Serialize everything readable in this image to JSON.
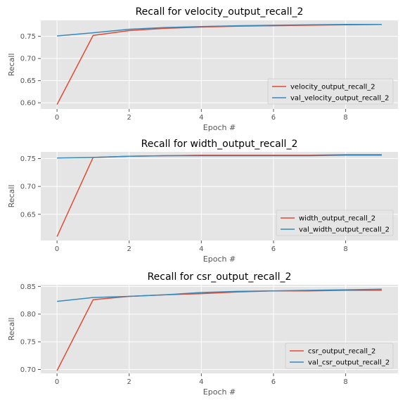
{
  "chart_data": [
    {
      "type": "line",
      "title": "Recall for velocity_output_recall_2",
      "xlabel": "Epoch #",
      "ylabel": "Recall",
      "x": [
        0,
        1,
        2,
        3,
        4,
        5,
        6,
        7,
        8,
        9
      ],
      "xticks": [
        0,
        2,
        4,
        6,
        8
      ],
      "yticks": [
        0.6,
        0.65,
        0.7,
        0.75
      ],
      "ytick_labels": [
        "0.60",
        "0.65",
        "0.70",
        "0.75"
      ],
      "xlim": [
        -0.45,
        9.45
      ],
      "ylim": [
        0.586,
        0.786
      ],
      "grid": true,
      "legend_position": "lower-right",
      "series": [
        {
          "name": "velocity_output_recall_2",
          "color": "#E24A33",
          "values": [
            0.596,
            0.752,
            0.763,
            0.768,
            0.771,
            0.773,
            0.774,
            0.775,
            0.776,
            0.777
          ]
        },
        {
          "name": "val_velocity_output_recall_2",
          "color": "#348ABD",
          "values": [
            0.751,
            0.758,
            0.766,
            0.77,
            0.772,
            0.774,
            0.775,
            0.776,
            0.777,
            0.777
          ]
        }
      ]
    },
    {
      "type": "line",
      "title": "Recall for width_output_recall_2",
      "xlabel": "Epoch #",
      "ylabel": "Recall",
      "x": [
        0,
        1,
        2,
        3,
        4,
        5,
        6,
        7,
        8,
        9
      ],
      "xticks": [
        0,
        2,
        4,
        6,
        8
      ],
      "yticks": [
        0.65,
        0.7,
        0.75
      ],
      "ytick_labels": [
        "0.65",
        "0.70",
        "0.75"
      ],
      "xlim": [
        -0.45,
        9.45
      ],
      "ylim": [
        0.603,
        0.762
      ],
      "grid": true,
      "legend_position": "lower-right",
      "series": [
        {
          "name": "width_output_recall_2",
          "color": "#E24A33",
          "values": [
            0.61,
            0.752,
            0.754,
            0.755,
            0.756,
            0.756,
            0.756,
            0.756,
            0.757,
            0.757
          ]
        },
        {
          "name": "val_width_output_recall_2",
          "color": "#348ABD",
          "values": [
            0.751,
            0.752,
            0.754,
            0.755,
            0.755,
            0.755,
            0.755,
            0.755,
            0.756,
            0.756
          ]
        }
      ]
    },
    {
      "type": "line",
      "title": "Recall for csr_output_recall_2",
      "xlabel": "Epoch #",
      "ylabel": "Recall",
      "x": [
        0,
        1,
        2,
        3,
        4,
        5,
        6,
        7,
        8,
        9
      ],
      "xticks": [
        0,
        2,
        4,
        6,
        8
      ],
      "yticks": [
        0.7,
        0.75,
        0.8,
        0.85
      ],
      "ytick_labels": [
        "0.70",
        "0.75",
        "0.80",
        "0.85"
      ],
      "xlim": [
        -0.45,
        9.45
      ],
      "ylim": [
        0.693,
        0.853
      ],
      "grid": true,
      "legend_position": "lower-right",
      "series": [
        {
          "name": "csr_output_recall_2",
          "color": "#E24A33",
          "values": [
            0.698,
            0.826,
            0.832,
            0.835,
            0.837,
            0.84,
            0.842,
            0.842,
            0.843,
            0.843
          ]
        },
        {
          "name": "val_csr_output_recall_2",
          "color": "#348ABD",
          "values": [
            0.823,
            0.83,
            0.832,
            0.835,
            0.839,
            0.841,
            0.842,
            0.843,
            0.844,
            0.845
          ]
        }
      ]
    }
  ]
}
